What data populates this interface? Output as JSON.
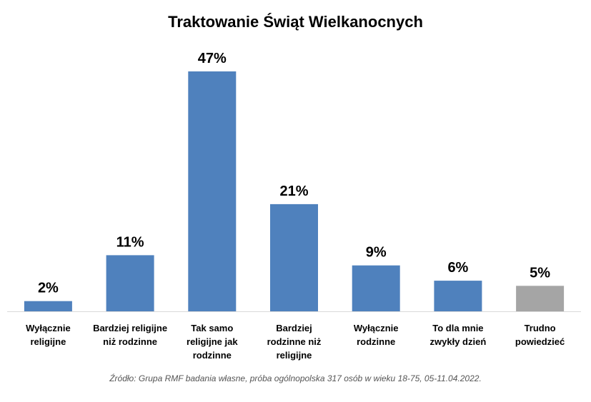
{
  "chart_data": {
    "type": "bar",
    "title": "Traktowanie Świąt Wielkanocnych",
    "categories": [
      [
        "Wyłącznie",
        "religijne"
      ],
      [
        "Bardziej religijne",
        "niż rodzinne"
      ],
      [
        "Tak samo",
        "religijne jak",
        "rodzinne"
      ],
      [
        "Bardziej",
        "rodzinne niż",
        "religijne"
      ],
      [
        "Wyłącznie",
        "rodzinne"
      ],
      [
        "To dla mnie",
        "zwykły dzień"
      ],
      [
        "Trudno",
        "powiedzieć"
      ]
    ],
    "values": [
      2,
      11,
      47,
      21,
      9,
      6,
      5
    ],
    "value_labels": [
      "2%",
      "11%",
      "47%",
      "21%",
      "9%",
      "6%",
      "5%"
    ],
    "unit": "%",
    "colors": [
      "#4f81bd",
      "#4f81bd",
      "#4f81bd",
      "#4f81bd",
      "#4f81bd",
      "#4f81bd",
      "#a5a5a5"
    ],
    "ylim": [
      0,
      47
    ],
    "grid": false,
    "legend": "none",
    "source": "Źródło: Grupa RMF badania własne, próba ogólnopolska 317 osób w wieku 18-75, 05-11.04.2022."
  }
}
